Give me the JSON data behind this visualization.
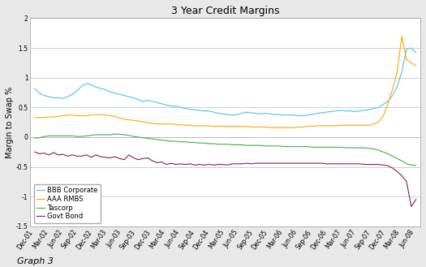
{
  "title": "3 Year Credit Margins",
  "ylabel": "Margin to Swap %",
  "caption": "Graph 3",
  "ylim": [
    -1.5,
    2.0
  ],
  "yticks": [
    -1.5,
    -1.0,
    -0.5,
    0.0,
    0.5,
    1.0,
    1.5,
    2.0
  ],
  "x_labels": [
    "Dec-01",
    "Mar-02",
    "Jun-02",
    "Sep-02",
    "Dec-02",
    "Mar-03",
    "Jun-03",
    "Sep-03",
    "Dec-03",
    "Mar-04",
    "Jun-04",
    "Sep-04",
    "Dec-04",
    "Mar-05",
    "Jun-05",
    "Sep-05",
    "Dec-05",
    "Mar-06",
    "Jun-06",
    "Sep-06",
    "Dec-06",
    "Mar-07",
    "Jun-07",
    "Sep-07",
    "Dec-07",
    "Mar-08",
    "Jun-08"
  ],
  "series": {
    "BBB Corporate": {
      "color": "#4DC3E8",
      "values": [
        0.82,
        0.74,
        0.7,
        0.68,
        0.66,
        0.66,
        0.65,
        0.68,
        0.72,
        0.78,
        0.86,
        0.9,
        0.88,
        0.84,
        0.82,
        0.8,
        0.76,
        0.74,
        0.72,
        0.7,
        0.68,
        0.66,
        0.63,
        0.6,
        0.62,
        0.6,
        0.58,
        0.56,
        0.54,
        0.52,
        0.52,
        0.5,
        0.48,
        0.47,
        0.46,
        0.45,
        0.44,
        0.44,
        0.42,
        0.4,
        0.39,
        0.38,
        0.37,
        0.38,
        0.4,
        0.42,
        0.41,
        0.4,
        0.39,
        0.4,
        0.39,
        0.38,
        0.38,
        0.37,
        0.37,
        0.37,
        0.36,
        0.36,
        0.37,
        0.38,
        0.4,
        0.41,
        0.42,
        0.43,
        0.44,
        0.45,
        0.44,
        0.44,
        0.43,
        0.44,
        0.45,
        0.46,
        0.48,
        0.5,
        0.55,
        0.6,
        0.7,
        0.85,
        1.1,
        1.48,
        1.5,
        1.42
      ]
    },
    "AAA RMBS": {
      "color": "#FFA500",
      "values": [
        0.33,
        0.33,
        0.33,
        0.34,
        0.34,
        0.35,
        0.36,
        0.37,
        0.37,
        0.36,
        0.36,
        0.36,
        0.37,
        0.38,
        0.38,
        0.37,
        0.36,
        0.35,
        0.32,
        0.3,
        0.29,
        0.28,
        0.27,
        0.26,
        0.24,
        0.23,
        0.22,
        0.22,
        0.22,
        0.22,
        0.21,
        0.21,
        0.2,
        0.2,
        0.19,
        0.19,
        0.19,
        0.19,
        0.18,
        0.18,
        0.18,
        0.18,
        0.18,
        0.18,
        0.18,
        0.18,
        0.17,
        0.17,
        0.17,
        0.17,
        0.16,
        0.16,
        0.16,
        0.16,
        0.16,
        0.16,
        0.17,
        0.17,
        0.18,
        0.18,
        0.19,
        0.19,
        0.19,
        0.19,
        0.19,
        0.2,
        0.2,
        0.2,
        0.2,
        0.2,
        0.2,
        0.2,
        0.22,
        0.25,
        0.35,
        0.55,
        0.8,
        1.1,
        1.7,
        1.3,
        1.25,
        1.2
      ]
    },
    "Tascorp": {
      "color": "#3CB043",
      "values": [
        -0.02,
        -0.01,
        0.01,
        0.02,
        0.02,
        0.02,
        0.02,
        0.02,
        0.02,
        0.01,
        0.01,
        0.02,
        0.03,
        0.04,
        0.04,
        0.04,
        0.04,
        0.05,
        0.05,
        0.04,
        0.03,
        0.01,
        0.0,
        -0.01,
        -0.02,
        -0.03,
        -0.04,
        -0.05,
        -0.06,
        -0.07,
        -0.07,
        -0.08,
        -0.08,
        -0.09,
        -0.09,
        -0.1,
        -0.1,
        -0.11,
        -0.11,
        -0.12,
        -0.12,
        -0.12,
        -0.13,
        -0.13,
        -0.13,
        -0.14,
        -0.14,
        -0.14,
        -0.14,
        -0.15,
        -0.15,
        -0.15,
        -0.15,
        -0.16,
        -0.16,
        -0.16,
        -0.16,
        -0.16,
        -0.16,
        -0.17,
        -0.17,
        -0.17,
        -0.17,
        -0.17,
        -0.17,
        -0.17,
        -0.18,
        -0.18,
        -0.18,
        -0.18,
        -0.18,
        -0.19,
        -0.2,
        -0.22,
        -0.25,
        -0.28,
        -0.32,
        -0.36,
        -0.4,
        -0.45,
        -0.47,
        -0.48
      ]
    },
    "Govt Bond": {
      "color": "#8B1A5A",
      "values": [
        -0.25,
        -0.28,
        -0.27,
        -0.3,
        -0.26,
        -0.3,
        -0.29,
        -0.32,
        -0.3,
        -0.32,
        -0.32,
        -0.3,
        -0.34,
        -0.3,
        -0.33,
        -0.34,
        -0.35,
        -0.33,
        -0.36,
        -0.38,
        -0.3,
        -0.35,
        -0.38,
        -0.36,
        -0.35,
        -0.4,
        -0.43,
        -0.42,
        -0.46,
        -0.44,
        -0.46,
        -0.45,
        -0.46,
        -0.45,
        -0.47,
        -0.46,
        -0.47,
        -0.46,
        -0.47,
        -0.46,
        -0.46,
        -0.47,
        -0.45,
        -0.45,
        -0.45,
        -0.44,
        -0.45,
        -0.44,
        -0.44,
        -0.44,
        -0.44,
        -0.44,
        -0.44,
        -0.44,
        -0.44,
        -0.44,
        -0.44,
        -0.44,
        -0.44,
        -0.44,
        -0.44,
        -0.44,
        -0.45,
        -0.45,
        -0.45,
        -0.45,
        -0.45,
        -0.45,
        -0.45,
        -0.45,
        -0.46,
        -0.46,
        -0.46,
        -0.46,
        -0.47,
        -0.48,
        -0.52,
        -0.58,
        -0.65,
        -0.75,
        -1.17,
        -1.05
      ]
    }
  },
  "fig_bg_color": "#E8E8E8",
  "plot_bg_color": "#FFFFFF",
  "grid_color": "#AAAAAA",
  "border_color": "#999999",
  "title_fontsize": 9,
  "axis_label_fontsize": 7,
  "tick_fontsize": 5.5,
  "legend_fontsize": 6,
  "caption_fontsize": 8
}
